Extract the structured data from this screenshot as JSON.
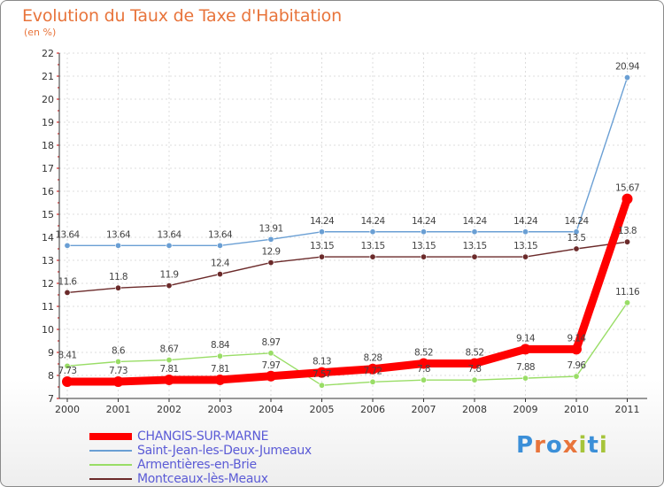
{
  "title": "Evolution du Taux de Taxe d'Habitation",
  "unit": "(en %)",
  "logo": {
    "text": "Proxiti"
  },
  "chart_data": {
    "type": "line",
    "x": [
      "2000",
      "2001",
      "2002",
      "2003",
      "2004",
      "2005",
      "2006",
      "2007",
      "2008",
      "2009",
      "2010",
      "2011"
    ],
    "ylim": [
      7,
      22
    ],
    "yticks": [
      7,
      8,
      9,
      10,
      11,
      12,
      13,
      14,
      15,
      16,
      17,
      18,
      19,
      20,
      21,
      22
    ],
    "grid": true,
    "legend_position": "bottom-left",
    "series": [
      {
        "name": "CHANGIS-SUR-MARNE",
        "color": "#ff0000",
        "values": [
          7.73,
          7.73,
          7.81,
          7.81,
          7.97,
          8.13,
          8.28,
          8.52,
          8.52,
          9.14,
          9.14,
          15.67
        ],
        "labels": [
          "7.73",
          "7.73",
          "7.81",
          "7.81",
          "7.97",
          "8.13",
          "8.28",
          "8.52",
          "8.52",
          "9.14",
          "9.14",
          "15.67"
        ]
      },
      {
        "name": "Saint-Jean-les-Deux-Jumeaux",
        "color": "#6a9fd4",
        "values": [
          13.64,
          13.64,
          13.64,
          13.64,
          13.91,
          14.24,
          14.24,
          14.24,
          14.24,
          14.24,
          14.24,
          20.94
        ],
        "labels": [
          "13.64",
          "13.64",
          "13.64",
          "13.64",
          "13.91",
          "14.24",
          "14.24",
          "14.24",
          "14.24",
          "14.24",
          "14.24",
          "20.94"
        ]
      },
      {
        "name": "Armentières-en-Brie",
        "color": "#99dd66",
        "values": [
          8.41,
          8.6,
          8.67,
          8.84,
          8.97,
          7.57,
          7.72,
          7.8,
          7.8,
          7.88,
          7.96,
          11.16
        ],
        "labels": [
          "8.41",
          "8.6",
          "8.67",
          "8.84",
          "8.97",
          "7.57",
          "7.72",
          "7.8",
          "7.8",
          "7.88",
          "7.96",
          "11.16"
        ]
      },
      {
        "name": "Montceaux-lès-Meaux",
        "color": "#6b2a2a",
        "values": [
          11.6,
          11.8,
          11.9,
          12.4,
          12.9,
          13.15,
          13.15,
          13.15,
          13.15,
          13.15,
          13.5,
          13.8
        ],
        "labels": [
          "11.6",
          "11.8",
          "11.9",
          "12.4",
          "12.9",
          "13.15",
          "13.15",
          "13.15",
          "13.15",
          "13.15",
          "13.5",
          "13.8"
        ]
      }
    ]
  }
}
